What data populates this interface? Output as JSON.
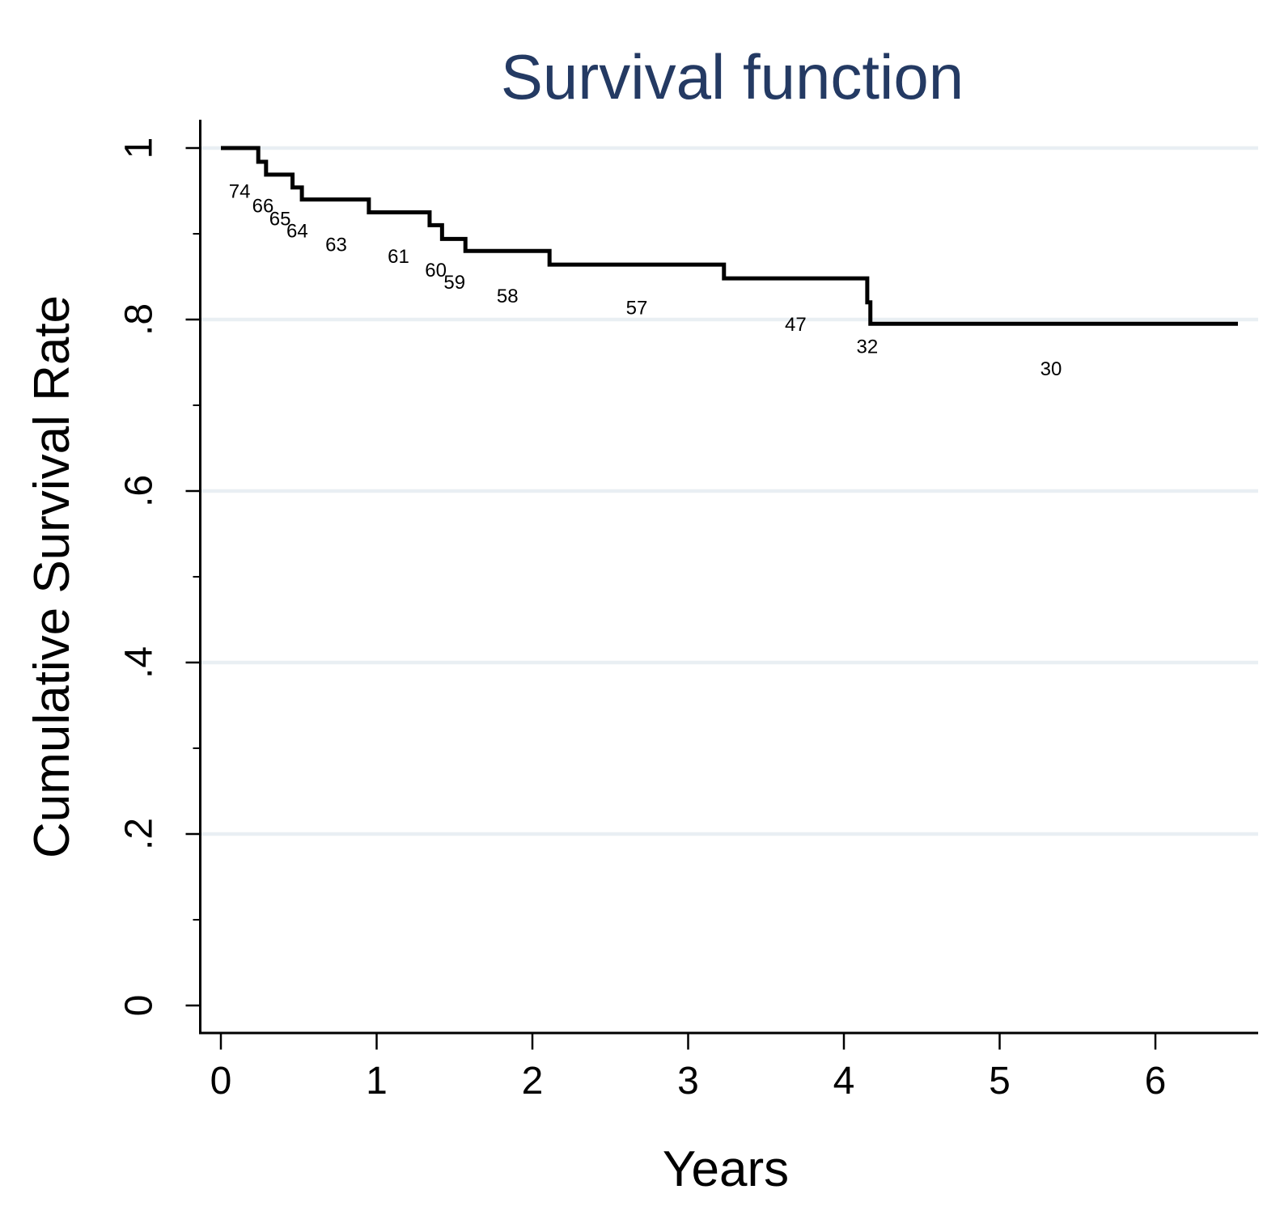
{
  "title": {
    "text": "Survival function",
    "color": "#243a63"
  },
  "x_axis": {
    "label": "Years",
    "ticks": [
      {
        "v": 0,
        "label": "0"
      },
      {
        "v": 1,
        "label": "1"
      },
      {
        "v": 2,
        "label": "2"
      },
      {
        "v": 3,
        "label": "3"
      },
      {
        "v": 4,
        "label": "4"
      },
      {
        "v": 5,
        "label": "5"
      },
      {
        "v": 6,
        "label": "6"
      }
    ]
  },
  "y_axis": {
    "label": "Cumulative Survival Rate",
    "ticks": [
      {
        "v": 1,
        "label": "1"
      },
      {
        "v": 0.8,
        "label": ".8"
      },
      {
        "v": 0.6,
        "label": ".6"
      },
      {
        "v": 0.4,
        "label": ".4"
      },
      {
        "v": 0.2,
        "label": ".2"
      },
      {
        "v": 0,
        "label": "0"
      }
    ],
    "minor_ticks": [
      0.9,
      0.7,
      0.5,
      0.3,
      0.1
    ],
    "gridlines": [
      1,
      0.8,
      0.6,
      0.4,
      0.2
    ]
  },
  "chart_data": {
    "type": "line",
    "step": true,
    "title": "Survival function",
    "xlabel": "Years",
    "ylabel": "Cumulative Survival Rate",
    "xlim": [
      0,
      6.6
    ],
    "ylim": [
      0,
      1
    ],
    "grid": "horizontal major gridlines only, light blue",
    "legend": "none",
    "colors": {
      "curve": "#000000",
      "gridline": "#e9eff3",
      "axis": "#000000",
      "title": "#243a63"
    },
    "series": [
      {
        "name": "Survival function",
        "points": [
          {
            "x": 0,
            "y": 1.0
          },
          {
            "x": 0.24,
            "y": 0.984
          },
          {
            "x": 0.29,
            "y": 0.969
          },
          {
            "x": 0.46,
            "y": 0.954
          },
          {
            "x": 0.52,
            "y": 0.94
          },
          {
            "x": 0.95,
            "y": 0.925
          },
          {
            "x": 1.34,
            "y": 0.91
          },
          {
            "x": 1.42,
            "y": 0.894
          },
          {
            "x": 1.57,
            "y": 0.88
          },
          {
            "x": 2.11,
            "y": 0.864
          },
          {
            "x": 3.23,
            "y": 0.848
          },
          {
            "x": 4.15,
            "y": 0.82
          },
          {
            "x": 4.17,
            "y": 0.795
          }
        ],
        "end_x": 6.53
      }
    ],
    "at_risk_labels": [
      {
        "label": "74",
        "x": 0.12,
        "y": 0.949
      },
      {
        "label": "66",
        "x": 0.27,
        "y": 0.932
      },
      {
        "label": "65",
        "x": 0.38,
        "y": 0.917
      },
      {
        "label": "64",
        "x": 0.49,
        "y": 0.903
      },
      {
        "label": "63",
        "x": 0.74,
        "y": 0.887
      },
      {
        "label": "61",
        "x": 1.14,
        "y": 0.873
      },
      {
        "label": "60",
        "x": 1.38,
        "y": 0.857
      },
      {
        "label": "59",
        "x": 1.5,
        "y": 0.843
      },
      {
        "label": "58",
        "x": 1.84,
        "y": 0.827
      },
      {
        "label": "57",
        "x": 2.67,
        "y": 0.813
      },
      {
        "label": "47",
        "x": 3.69,
        "y": 0.794
      },
      {
        "label": "32",
        "x": 4.15,
        "y": 0.768
      },
      {
        "label": "30",
        "x": 5.33,
        "y": 0.742
      }
    ]
  }
}
